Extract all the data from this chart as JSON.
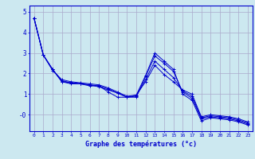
{
  "xlabel": "Graphe des températures (°c)",
  "background_color": "#cce8f0",
  "grid_color": "#aaaacc",
  "line_color": "#0000cc",
  "x_ticks": [
    0,
    1,
    2,
    3,
    4,
    5,
    6,
    7,
    8,
    9,
    10,
    11,
    12,
    13,
    14,
    15,
    16,
    17,
    18,
    19,
    20,
    21,
    22,
    23
  ],
  "ylim": [
    -0.8,
    5.3
  ],
  "xlim": [
    -0.5,
    23.5
  ],
  "yticks": [
    5,
    4,
    3,
    2,
    1,
    0
  ],
  "ytick_labels": [
    "5",
    "4",
    "3",
    "2",
    "1",
    "-0"
  ],
  "series": [
    [
      4.7,
      2.9,
      2.2,
      1.6,
      1.5,
      1.5,
      1.4,
      1.4,
      1.1,
      0.85,
      0.85,
      0.95,
      1.9,
      3.0,
      2.6,
      2.2,
      1.0,
      0.7,
      -0.3,
      -0.15,
      -0.2,
      -0.25,
      -0.35,
      -0.5
    ],
    [
      4.7,
      2.9,
      2.2,
      1.65,
      1.55,
      1.5,
      1.45,
      1.35,
      1.2,
      1.05,
      0.85,
      0.85,
      1.85,
      2.85,
      2.5,
      2.1,
      1.1,
      0.8,
      -0.2,
      -0.1,
      -0.15,
      -0.2,
      -0.3,
      -0.45
    ],
    [
      4.7,
      2.9,
      2.2,
      1.6,
      1.55,
      1.5,
      1.45,
      1.4,
      1.25,
      1.05,
      0.85,
      0.9,
      1.7,
      2.6,
      2.2,
      1.8,
      1.15,
      0.9,
      -0.15,
      -0.05,
      -0.1,
      -0.15,
      -0.25,
      -0.4
    ],
    [
      4.7,
      2.9,
      2.15,
      1.7,
      1.6,
      1.55,
      1.5,
      1.45,
      1.3,
      1.1,
      0.9,
      0.95,
      1.6,
      2.4,
      1.95,
      1.6,
      1.2,
      1.0,
      -0.1,
      0.0,
      -0.05,
      -0.1,
      -0.2,
      -0.35
    ]
  ]
}
